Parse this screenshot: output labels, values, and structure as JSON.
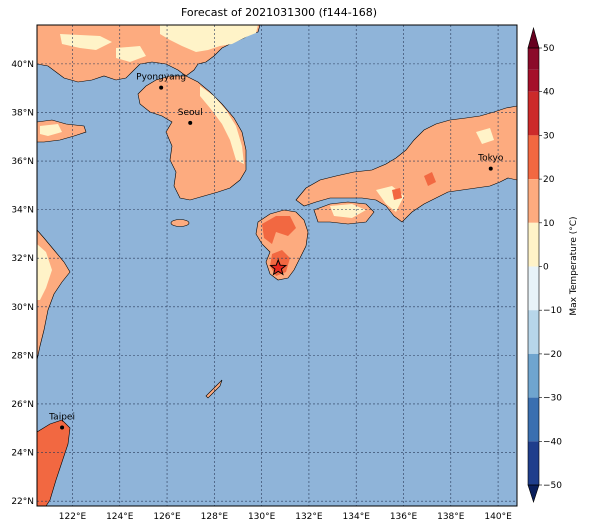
{
  "title": "Forecast of 2021031300 (f144-168)",
  "map": {
    "lon_range": [
      120.5,
      140.8
    ],
    "lat_range": [
      21.8,
      41.6
    ],
    "lon_ticks": [
      {
        "v": 122,
        "label": "122°E"
      },
      {
        "v": 124,
        "label": "124°E"
      },
      {
        "v": 126,
        "label": "126°E"
      },
      {
        "v": 128,
        "label": "128°E"
      },
      {
        "v": 130,
        "label": "130°E"
      },
      {
        "v": 132,
        "label": "132°E"
      },
      {
        "v": 134,
        "label": "134°E"
      },
      {
        "v": 136,
        "label": "136°E"
      },
      {
        "v": 138,
        "label": "138°E"
      },
      {
        "v": 140,
        "label": "140°E"
      }
    ],
    "lat_ticks": [
      {
        "v": 22,
        "label": "22°N"
      },
      {
        "v": 24,
        "label": "24°N"
      },
      {
        "v": 26,
        "label": "26°N"
      },
      {
        "v": 28,
        "label": "28°N"
      },
      {
        "v": 30,
        "label": "30°N"
      },
      {
        "v": 32,
        "label": "32°N"
      },
      {
        "v": 34,
        "label": "34°N"
      },
      {
        "v": 36,
        "label": "36°N"
      },
      {
        "v": 38,
        "label": "38°N"
      },
      {
        "v": 40,
        "label": "40°N"
      }
    ],
    "cities": [
      {
        "name": "Pyongyang",
        "lon": 125.75,
        "lat": 39.02
      },
      {
        "name": "Seoul",
        "lon": 126.98,
        "lat": 37.57
      },
      {
        "name": "Tokyo",
        "lon": 139.69,
        "lat": 35.69
      },
      {
        "name": "Taipei",
        "lon": 121.56,
        "lat": 25.03
      }
    ],
    "marker": {
      "symbol": "star",
      "lon": 130.7,
      "lat": 31.6
    },
    "colors": {
      "ocean": "#8fb4d9",
      "land_10_20": "#fdab7f",
      "land_0_10": "#fff3c8",
      "land_20_30": "#f26841",
      "gridline": "#2a3a5a"
    }
  },
  "colorbar": {
    "label": "Max Temperature (°C)",
    "ticks": [
      "50",
      "40",
      "30",
      "20",
      "10",
      "0",
      "−10",
      "−20",
      "−30",
      "−40",
      "−50"
    ],
    "colors": [
      "#67001f",
      "#b2182b",
      "#d6604d",
      "#f4a582",
      "#fddbc7",
      "#ffffff",
      "#d1e5f0",
      "#92c5de",
      "#4393c3",
      "#2166ac",
      "#053061"
    ],
    "levels": [
      {
        "range": [
          45,
          50
        ],
        "color": "#8b0a2a"
      },
      {
        "range": [
          40,
          45
        ],
        "color": "#a50f2a"
      },
      {
        "range": [
          30,
          40
        ],
        "color": "#cc2a2a"
      },
      {
        "range": [
          20,
          30
        ],
        "color": "#f26841"
      },
      {
        "range": [
          10,
          20
        ],
        "color": "#fdab7f"
      },
      {
        "range": [
          0,
          10
        ],
        "color": "#fff3c8"
      },
      {
        "range": [
          -10,
          0
        ],
        "color": "#e8f3f8"
      },
      {
        "range": [
          -20,
          -10
        ],
        "color": "#b7d6ea"
      },
      {
        "range": [
          -30,
          -20
        ],
        "color": "#6fa5cf"
      },
      {
        "range": [
          -40,
          -30
        ],
        "color": "#3a6fb0"
      },
      {
        "range": [
          -50,
          -40
        ],
        "color": "#1f3e8c"
      }
    ]
  }
}
